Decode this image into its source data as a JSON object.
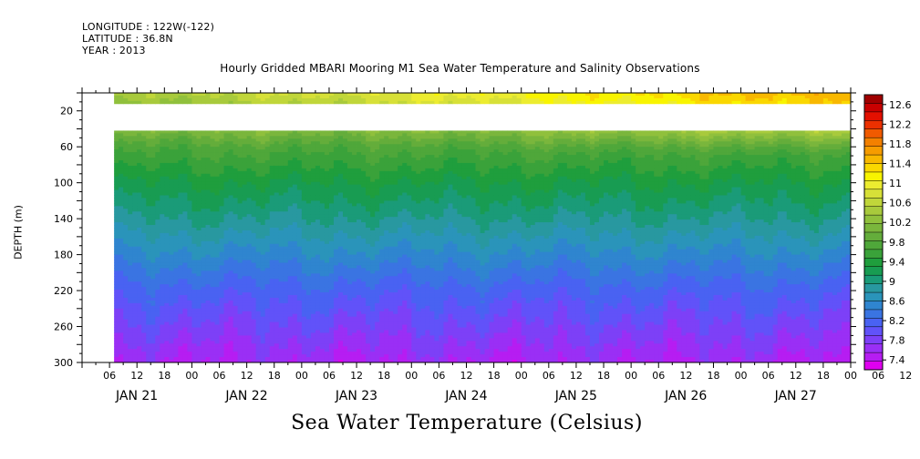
{
  "meta": {
    "longitude": "LONGITUDE : 122W(-122)",
    "latitude": "LATITUDE : 36.8N",
    "year": "YEAR : 2013"
  },
  "chart_data": {
    "type": "heatmap",
    "title": "Hourly Gridded MBARI Mooring M1 Sea Water Temperature and Salinity Observations",
    "bottom_label": "Sea Water Temperature (Celsius)",
    "xlabel": "",
    "ylabel": "DEPTH (m)",
    "x_range_hours": [
      0,
      168
    ],
    "x_start": "JAN 21 00",
    "x_end": "JAN 28 00",
    "data_start_hour": 7,
    "x_hour_ticks": [
      "06",
      "12",
      "18",
      "00",
      "06",
      "12",
      "18",
      "00",
      "06",
      "12",
      "18",
      "00",
      "06",
      "12",
      "18",
      "00",
      "06",
      "12",
      "18",
      "00",
      "06",
      "12",
      "18",
      "00",
      "06",
      "12",
      "18",
      "00",
      "06",
      "12",
      "18",
      "00"
    ],
    "x_day_labels": [
      "JAN 21",
      "JAN 22",
      "JAN 23",
      "JAN 24",
      "JAN 25",
      "JAN 26",
      "JAN 27"
    ],
    "ylim": [
      300,
      0
    ],
    "y_ticks": [
      20,
      60,
      100,
      140,
      180,
      220,
      260,
      300
    ],
    "y_tick_labels": [
      "20",
      "60",
      "100",
      "140",
      "180",
      "220",
      "260",
      "300"
    ],
    "missing_band_m": [
      11,
      40
    ],
    "depth_profile": {
      "depths": [
        0,
        11,
        40,
        60,
        100,
        140,
        180,
        220,
        260,
        300
      ],
      "temps": [
        11.5,
        11.3,
        10.6,
        10.1,
        9.6,
        9.2,
        8.75,
        8.3,
        7.95,
        7.6
      ]
    },
    "colorbar": {
      "label_values": [
        "12.6",
        "12.2",
        "11.8",
        "11.4",
        "11",
        "10.6",
        "10.2",
        "9.8",
        "9.4",
        "9",
        "8.6",
        "8.2",
        "7.8",
        "7.4"
      ],
      "min": 7.2,
      "max": 12.8,
      "step": 0.2,
      "colors": [
        "#e000f0",
        "#b61df2",
        "#9a2ff5",
        "#7d40f7",
        "#6152f9",
        "#4962f2",
        "#3a74e2",
        "#2f85cf",
        "#2a94ba",
        "#2898a0",
        "#1a9b78",
        "#189c52",
        "#1f9e3d",
        "#3aa23a",
        "#4fa73a",
        "#64ad3b",
        "#7ab63c",
        "#90c03c",
        "#a8ca3c",
        "#c0d63a",
        "#d7e038",
        "#ecec30",
        "#f8f400",
        "#fad700",
        "#f8b800",
        "#f69c00",
        "#f38000",
        "#f05a00",
        "#ec3000",
        "#e31000",
        "#c80000",
        "#a00000"
      ]
    }
  }
}
